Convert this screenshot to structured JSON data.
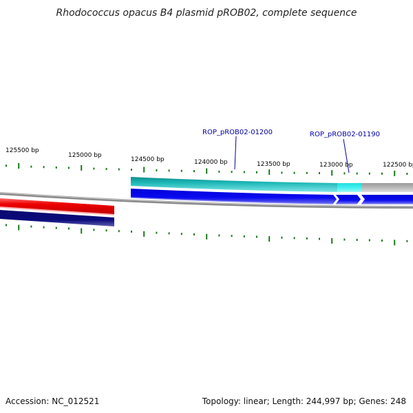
{
  "title": "Rhodococcus opacus B4 plasmid pROB02, complete sequence",
  "accession": "Accession: NC_012521",
  "summary": "Topology: linear; Length: 244,997 bp; Genes: 248",
  "tick_labels": [
    "125500 bp",
    "125000 bp",
    "124500 bp",
    "124000 bp",
    "123500 bp",
    "123000 bp",
    "122500 bp"
  ],
  "gene_labels": [
    "ROP_pROB02-01200",
    "ROP_pROB02-01190"
  ],
  "colors": {
    "tick": "#1a7a1a",
    "backbone": "#8a8a8a",
    "feature_red": "#ee0000",
    "feature_navy": "#0a0a7a",
    "feature_teal": "#20c4c4",
    "feature_cyan": "#33eeee",
    "feature_gray": "#b4b4b4",
    "feature_blue": "#0a0af0",
    "label": "#0000a0"
  }
}
